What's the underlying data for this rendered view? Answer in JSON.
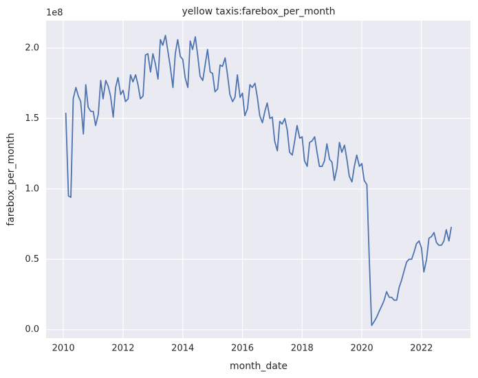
{
  "chart_data": {
    "type": "line",
    "title": "yellow taxis:farebox_per_month",
    "x_label": "month_date",
    "y_label": "farebox_per_month",
    "y_offset_label": "1e8",
    "color": "#4c72b0",
    "grid": true,
    "x": [
      2010.08,
      2010.17,
      2010.25,
      2010.33,
      2010.42,
      2010.5,
      2010.58,
      2010.67,
      2010.75,
      2010.83,
      2010.92,
      2011.0,
      2011.08,
      2011.17,
      2011.25,
      2011.33,
      2011.42,
      2011.5,
      2011.58,
      2011.67,
      2011.75,
      2011.83,
      2011.92,
      2012.0,
      2012.08,
      2012.17,
      2012.25,
      2012.33,
      2012.42,
      2012.5,
      2012.58,
      2012.67,
      2012.75,
      2012.83,
      2012.92,
      2013.0,
      2013.08,
      2013.17,
      2013.25,
      2013.33,
      2013.42,
      2013.5,
      2013.58,
      2013.67,
      2013.75,
      2013.83,
      2013.92,
      2014.0,
      2014.08,
      2014.17,
      2014.25,
      2014.33,
      2014.42,
      2014.5,
      2014.58,
      2014.67,
      2014.75,
      2014.83,
      2014.92,
      2015.0,
      2015.08,
      2015.17,
      2015.25,
      2015.33,
      2015.42,
      2015.5,
      2015.58,
      2015.67,
      2015.75,
      2015.83,
      2015.92,
      2016.0,
      2016.08,
      2016.17,
      2016.25,
      2016.33,
      2016.42,
      2016.5,
      2016.58,
      2016.67,
      2016.75,
      2016.83,
      2016.92,
      2017.0,
      2017.08,
      2017.17,
      2017.25,
      2017.33,
      2017.42,
      2017.5,
      2017.58,
      2017.67,
      2017.75,
      2017.83,
      2017.92,
      2018.0,
      2018.08,
      2018.17,
      2018.25,
      2018.33,
      2018.42,
      2018.5,
      2018.58,
      2018.67,
      2018.75,
      2018.83,
      2018.92,
      2019.0,
      2019.08,
      2019.17,
      2019.25,
      2019.33,
      2019.42,
      2019.5,
      2019.58,
      2019.67,
      2019.75,
      2019.83,
      2019.92,
      2020.0,
      2020.08,
      2020.17,
      2020.25,
      2020.33,
      2020.42,
      2020.5,
      2020.58,
      2020.67,
      2020.75,
      2020.83,
      2020.92,
      2021.0,
      2021.08,
      2021.17,
      2021.25,
      2021.33,
      2021.42,
      2021.5,
      2021.58,
      2021.67,
      2021.75,
      2021.83,
      2021.92,
      2022.0,
      2022.08,
      2022.17,
      2022.25,
      2022.33,
      2022.42,
      2022.5,
      2022.58,
      2022.67,
      2022.75,
      2022.83,
      2022.92,
      2023.0
    ],
    "values": [
      1.54,
      0.95,
      0.94,
      1.64,
      1.72,
      1.66,
      1.62,
      1.39,
      1.74,
      1.58,
      1.55,
      1.55,
      1.45,
      1.53,
      1.77,
      1.64,
      1.77,
      1.73,
      1.66,
      1.51,
      1.72,
      1.79,
      1.67,
      1.7,
      1.62,
      1.64,
      1.81,
      1.76,
      1.81,
      1.74,
      1.64,
      1.66,
      1.95,
      1.96,
      1.83,
      1.96,
      1.89,
      1.78,
      2.06,
      2.02,
      2.09,
      1.98,
      1.87,
      1.72,
      1.96,
      2.06,
      1.94,
      1.92,
      1.79,
      1.72,
      2.05,
      1.99,
      2.08,
      1.95,
      1.8,
      1.77,
      1.88,
      1.99,
      1.83,
      1.82,
      1.69,
      1.71,
      1.88,
      1.87,
      1.93,
      1.81,
      1.67,
      1.62,
      1.65,
      1.81,
      1.65,
      1.68,
      1.52,
      1.57,
      1.74,
      1.72,
      1.75,
      1.65,
      1.52,
      1.47,
      1.55,
      1.61,
      1.5,
      1.51,
      1.34,
      1.27,
      1.48,
      1.46,
      1.5,
      1.42,
      1.26,
      1.24,
      1.34,
      1.45,
      1.36,
      1.37,
      1.2,
      1.16,
      1.33,
      1.34,
      1.37,
      1.26,
      1.16,
      1.16,
      1.2,
      1.32,
      1.21,
      1.19,
      1.06,
      1.15,
      1.33,
      1.26,
      1.31,
      1.21,
      1.09,
      1.05,
      1.16,
      1.24,
      1.16,
      1.18,
      1.06,
      1.03,
      0.5,
      0.03,
      0.06,
      0.09,
      0.13,
      0.17,
      0.21,
      0.27,
      0.23,
      0.23,
      0.21,
      0.21,
      0.3,
      0.35,
      0.42,
      0.48,
      0.5,
      0.5,
      0.55,
      0.61,
      0.63,
      0.58,
      0.41,
      0.5,
      0.65,
      0.66,
      0.69,
      0.62,
      0.6,
      0.6,
      0.63,
      0.71,
      0.63,
      0.73
    ],
    "xlim": [
      2009.42,
      2023.64
    ],
    "xticks": [
      2010,
      2012,
      2014,
      2016,
      2018,
      2020,
      2022
    ],
    "ylim": [
      -0.06,
      2.195
    ],
    "yticks": [
      {
        "value": 0,
        "label": "0.0"
      },
      {
        "value": 0.5,
        "label": "0.5"
      },
      {
        "value": 1,
        "label": "1.0"
      },
      {
        "value": 1.5,
        "label": "1.5"
      },
      {
        "value": 2,
        "label": "2.0"
      }
    ]
  }
}
